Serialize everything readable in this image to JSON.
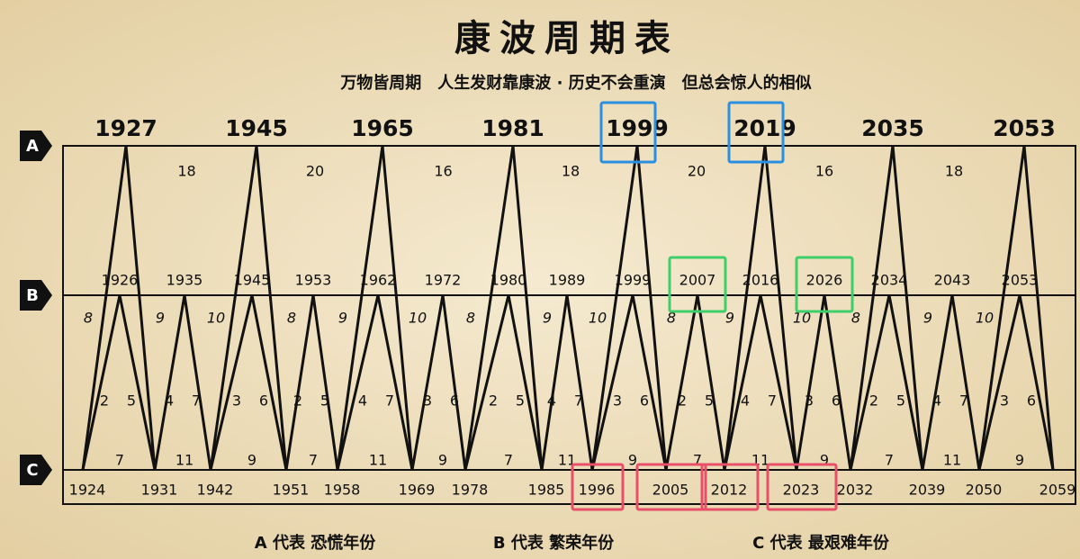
{
  "header": {
    "title": "康波周期表",
    "subtitle": "万物皆周期　人生发财靠康波 · 历史不会重演　但总会惊人的相似"
  },
  "rows": {
    "A": "A",
    "B": "B",
    "C": "C"
  },
  "a_years": [
    "1927",
    "1945",
    "1965",
    "1981",
    "1999",
    "2019",
    "2035",
    "2053"
  ],
  "a_gaps": [
    "18",
    "20",
    "16",
    "18",
    "20",
    "16",
    "18"
  ],
  "b_years": [
    "1926",
    "1935",
    "1945",
    "1953",
    "1962",
    "1972",
    "1980",
    "1989",
    "1999",
    "2007",
    "2016",
    "2026",
    "2034",
    "2043",
    "2053"
  ],
  "b_side": [
    "8",
    "9",
    "10",
    "8",
    "9",
    "10",
    "8",
    "9",
    "10",
    "8",
    "9",
    "10",
    "8",
    "9",
    "10"
  ],
  "mid_pairs": [
    [
      "2",
      "5"
    ],
    [
      "4",
      "7"
    ],
    [
      "3",
      "6"
    ],
    [
      "2",
      "5"
    ],
    [
      "4",
      "7"
    ],
    [
      "3",
      "6"
    ],
    [
      "2",
      "5"
    ],
    [
      "4",
      "7"
    ],
    [
      "3",
      "6"
    ],
    [
      "2",
      "5"
    ],
    [
      "4",
      "7"
    ],
    [
      "3",
      "6"
    ],
    [
      "2",
      "5"
    ],
    [
      "4",
      "7"
    ],
    [
      "3",
      "6"
    ]
  ],
  "c_gaps": [
    "7",
    "11",
    "9",
    "7",
    "11",
    "9",
    "7",
    "11",
    "9",
    "7",
    "11",
    "9",
    "7",
    "11",
    "9"
  ],
  "c_years": [
    "1924",
    "1931",
    "1942",
    "1951",
    "1958",
    "1969",
    "1978",
    "1985",
    "1996",
    "2005",
    "2012",
    "2023",
    "2032",
    "2039",
    "2050",
    "2059"
  ],
  "legend": [
    "A 代表 恐慌年份",
    "B 代表 繁荣年份",
    "C 代表 最艰难年份"
  ]
}
